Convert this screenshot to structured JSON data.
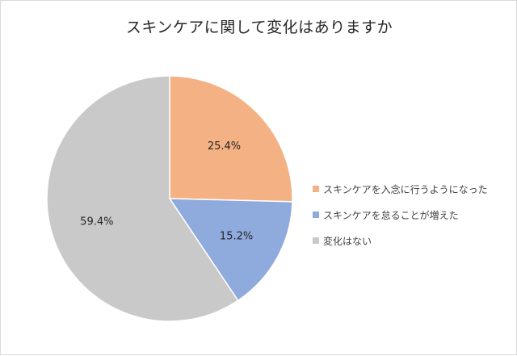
{
  "chart_data": {
    "type": "pie",
    "title": "スキンケアに関して変化はありますか",
    "slices": [
      {
        "name": "スキンケアを入念に行うようになった",
        "value": 25.4,
        "label": "25.4%",
        "color": "#F4B183"
      },
      {
        "name": "スキンケアを怠ることが増えた",
        "value": 15.2,
        "label": "15.2%",
        "color": "#8FAADC"
      },
      {
        "name": "変化はない",
        "value": 59.4,
        "label": "59.4%",
        "color": "#C9C9C9"
      }
    ],
    "start_angle_deg": 0,
    "direction": "clockwise",
    "legend_position": "right"
  }
}
